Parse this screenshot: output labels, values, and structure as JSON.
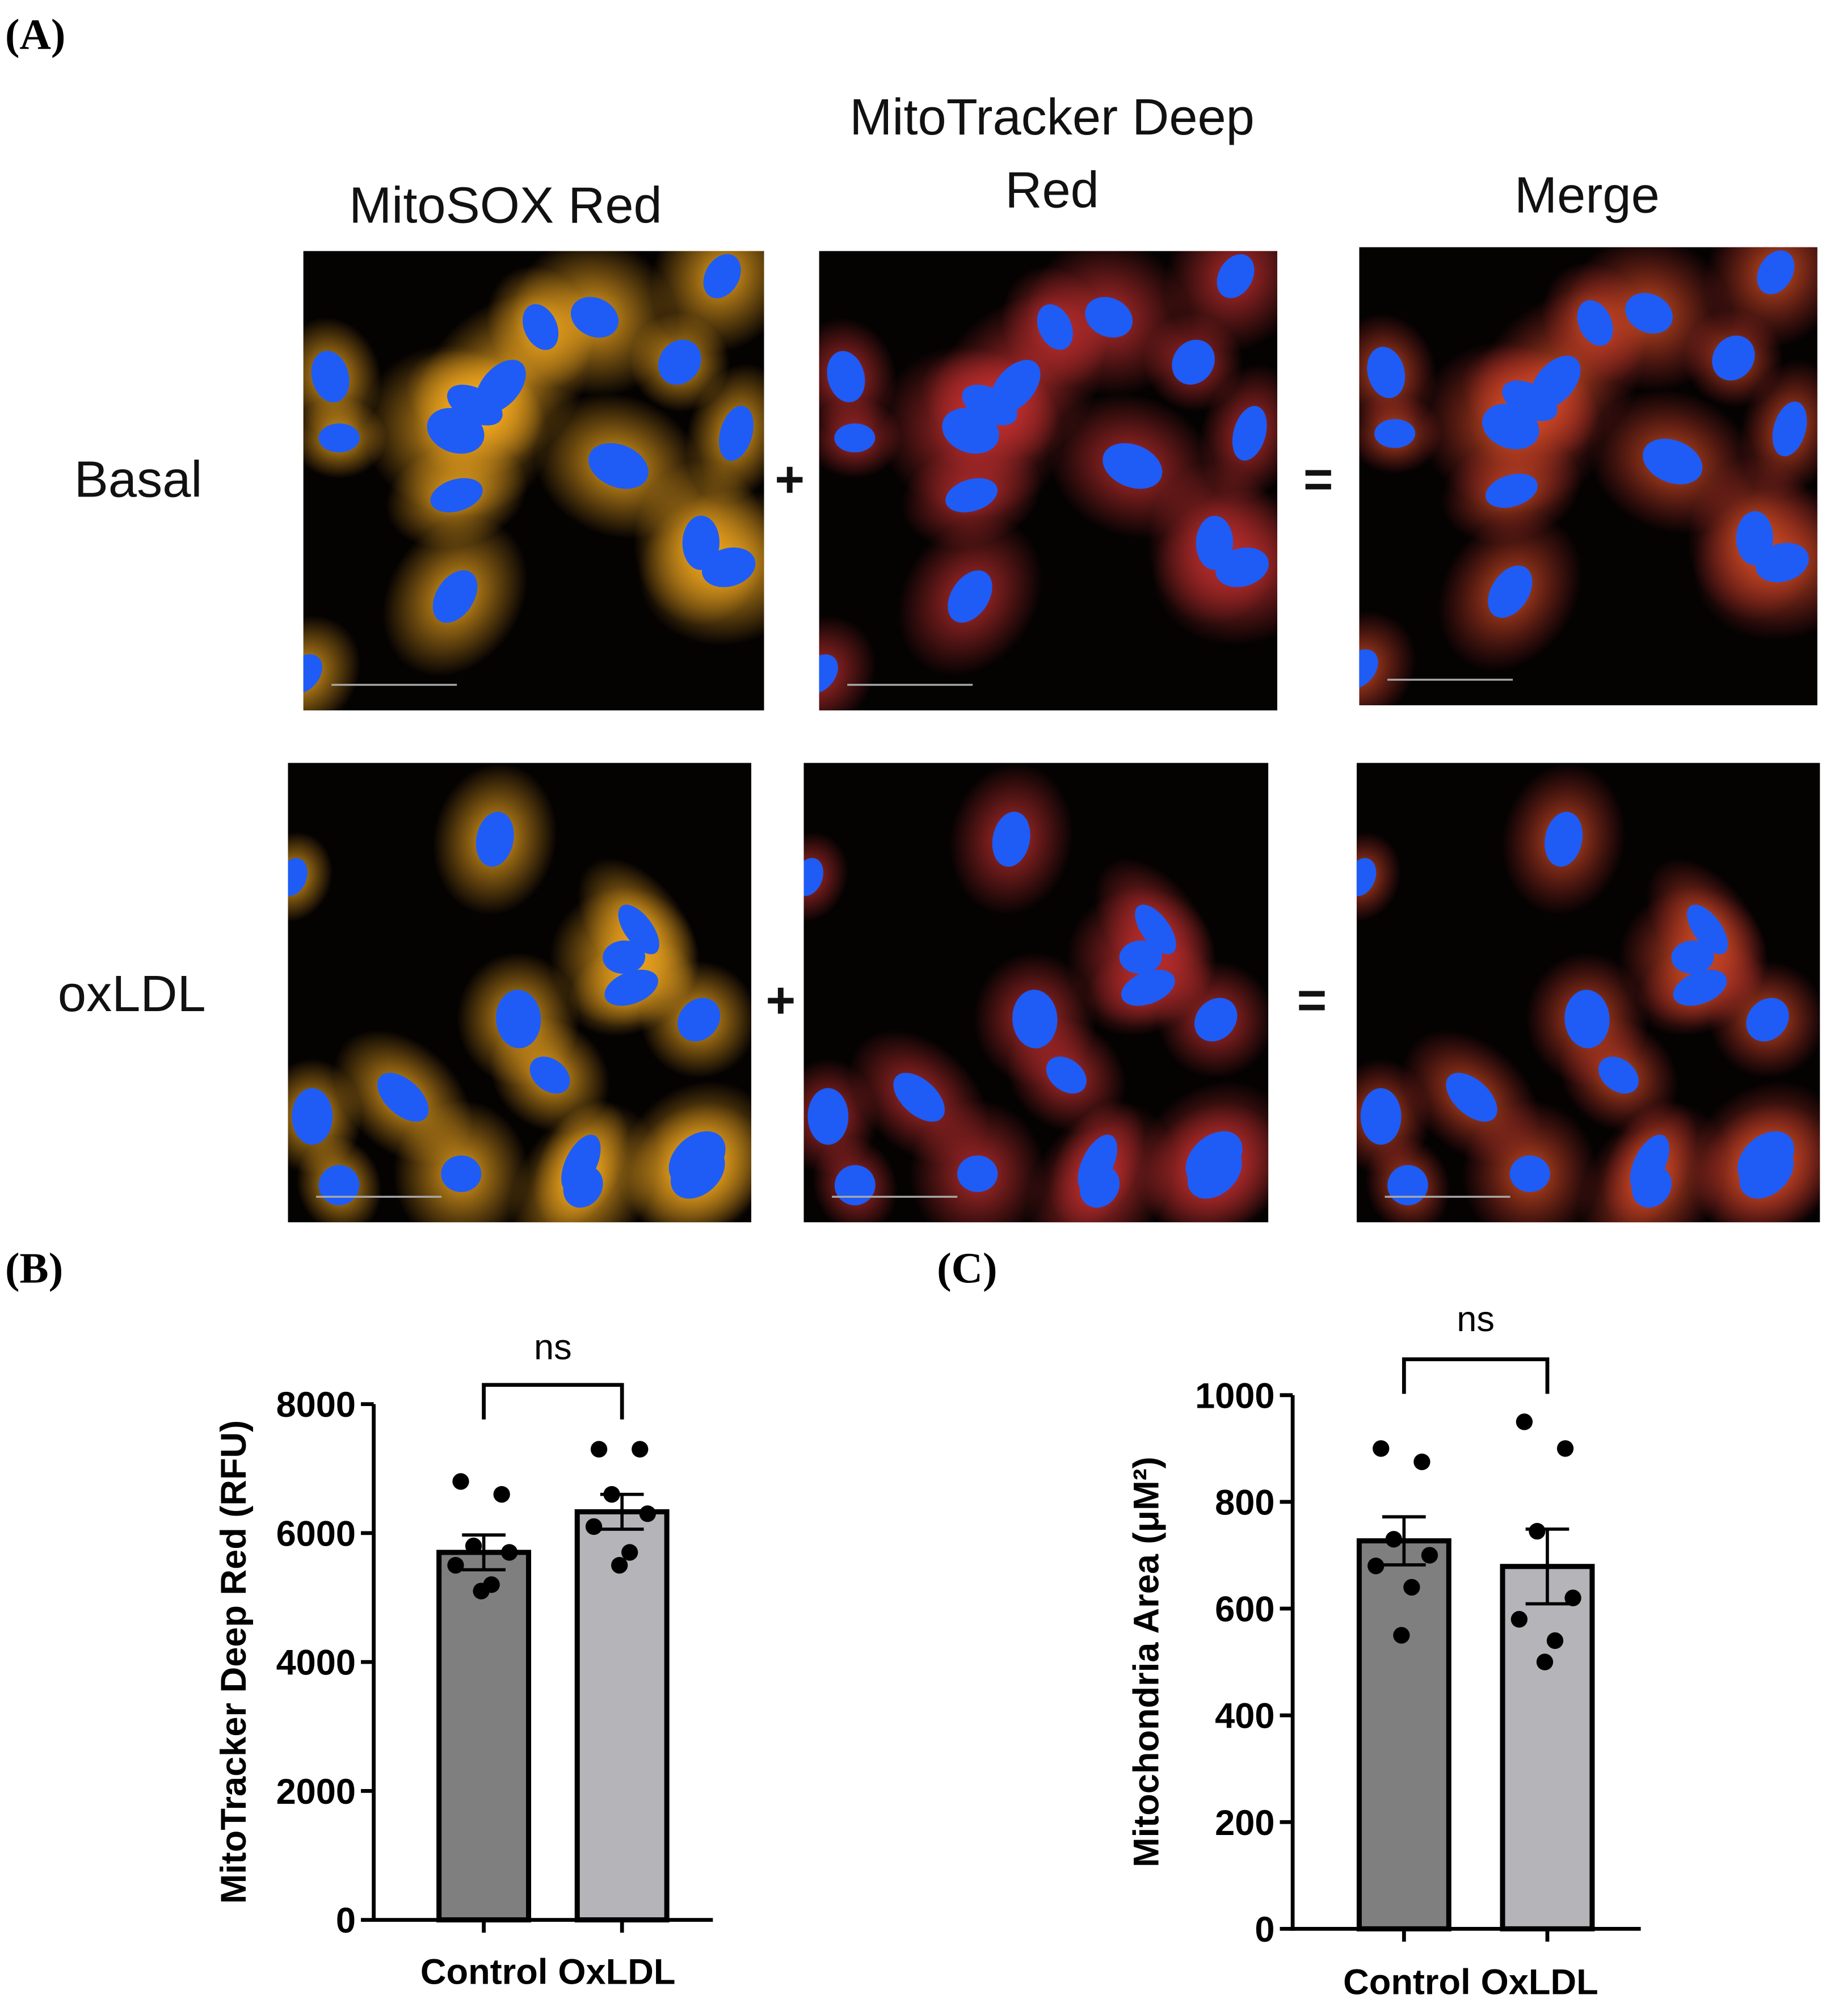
{
  "panel_labels": [
    "(A)",
    "(B)",
    "(C)"
  ],
  "columns": [
    [
      "MitoSOX Red"
    ],
    [
      "MitoTracker Deep",
      "Red"
    ],
    [
      "Merge"
    ]
  ],
  "rows": [
    "Basal",
    "oxLDL"
  ],
  "operators": [
    "+",
    "="
  ],
  "chart_data": [
    {
      "type": "bar",
      "ylabel": "MitoTracker Deep Red (RFU)",
      "annotation": "ns",
      "categories": [
        "Control",
        "OxLDL"
      ],
      "values": [
        5700,
        6330
      ],
      "errors": [
        270,
        270
      ],
      "points": [
        [
          6800,
          6600,
          5800,
          5700,
          5500,
          5200,
          5100
        ],
        [
          7300,
          7300,
          6600,
          6300,
          6100,
          5700,
          5500
        ]
      ],
      "colors": [
        "#7f7f7f",
        "#b4b4b9"
      ],
      "ylim": [
        0,
        8000
      ],
      "yticks": [
        0,
        2000,
        4000,
        6000,
        8000
      ]
    },
    {
      "type": "bar",
      "ylabel": "Mitochondria Area (μM²)",
      "annotation": "ns",
      "categories": [
        "Control",
        "OxLDL"
      ],
      "values": [
        727,
        679
      ],
      "errors": [
        45,
        70
      ],
      "points": [
        [
          900,
          875,
          730,
          700,
          680,
          640,
          550
        ],
        [
          950,
          900,
          745,
          620,
          580,
          540,
          500
        ]
      ],
      "colors": [
        "#7f7f7f",
        "#b4b4b9"
      ],
      "ylim": [
        0,
        1000
      ],
      "yticks": [
        0,
        200,
        400,
        600,
        800,
        1000
      ]
    }
  ]
}
